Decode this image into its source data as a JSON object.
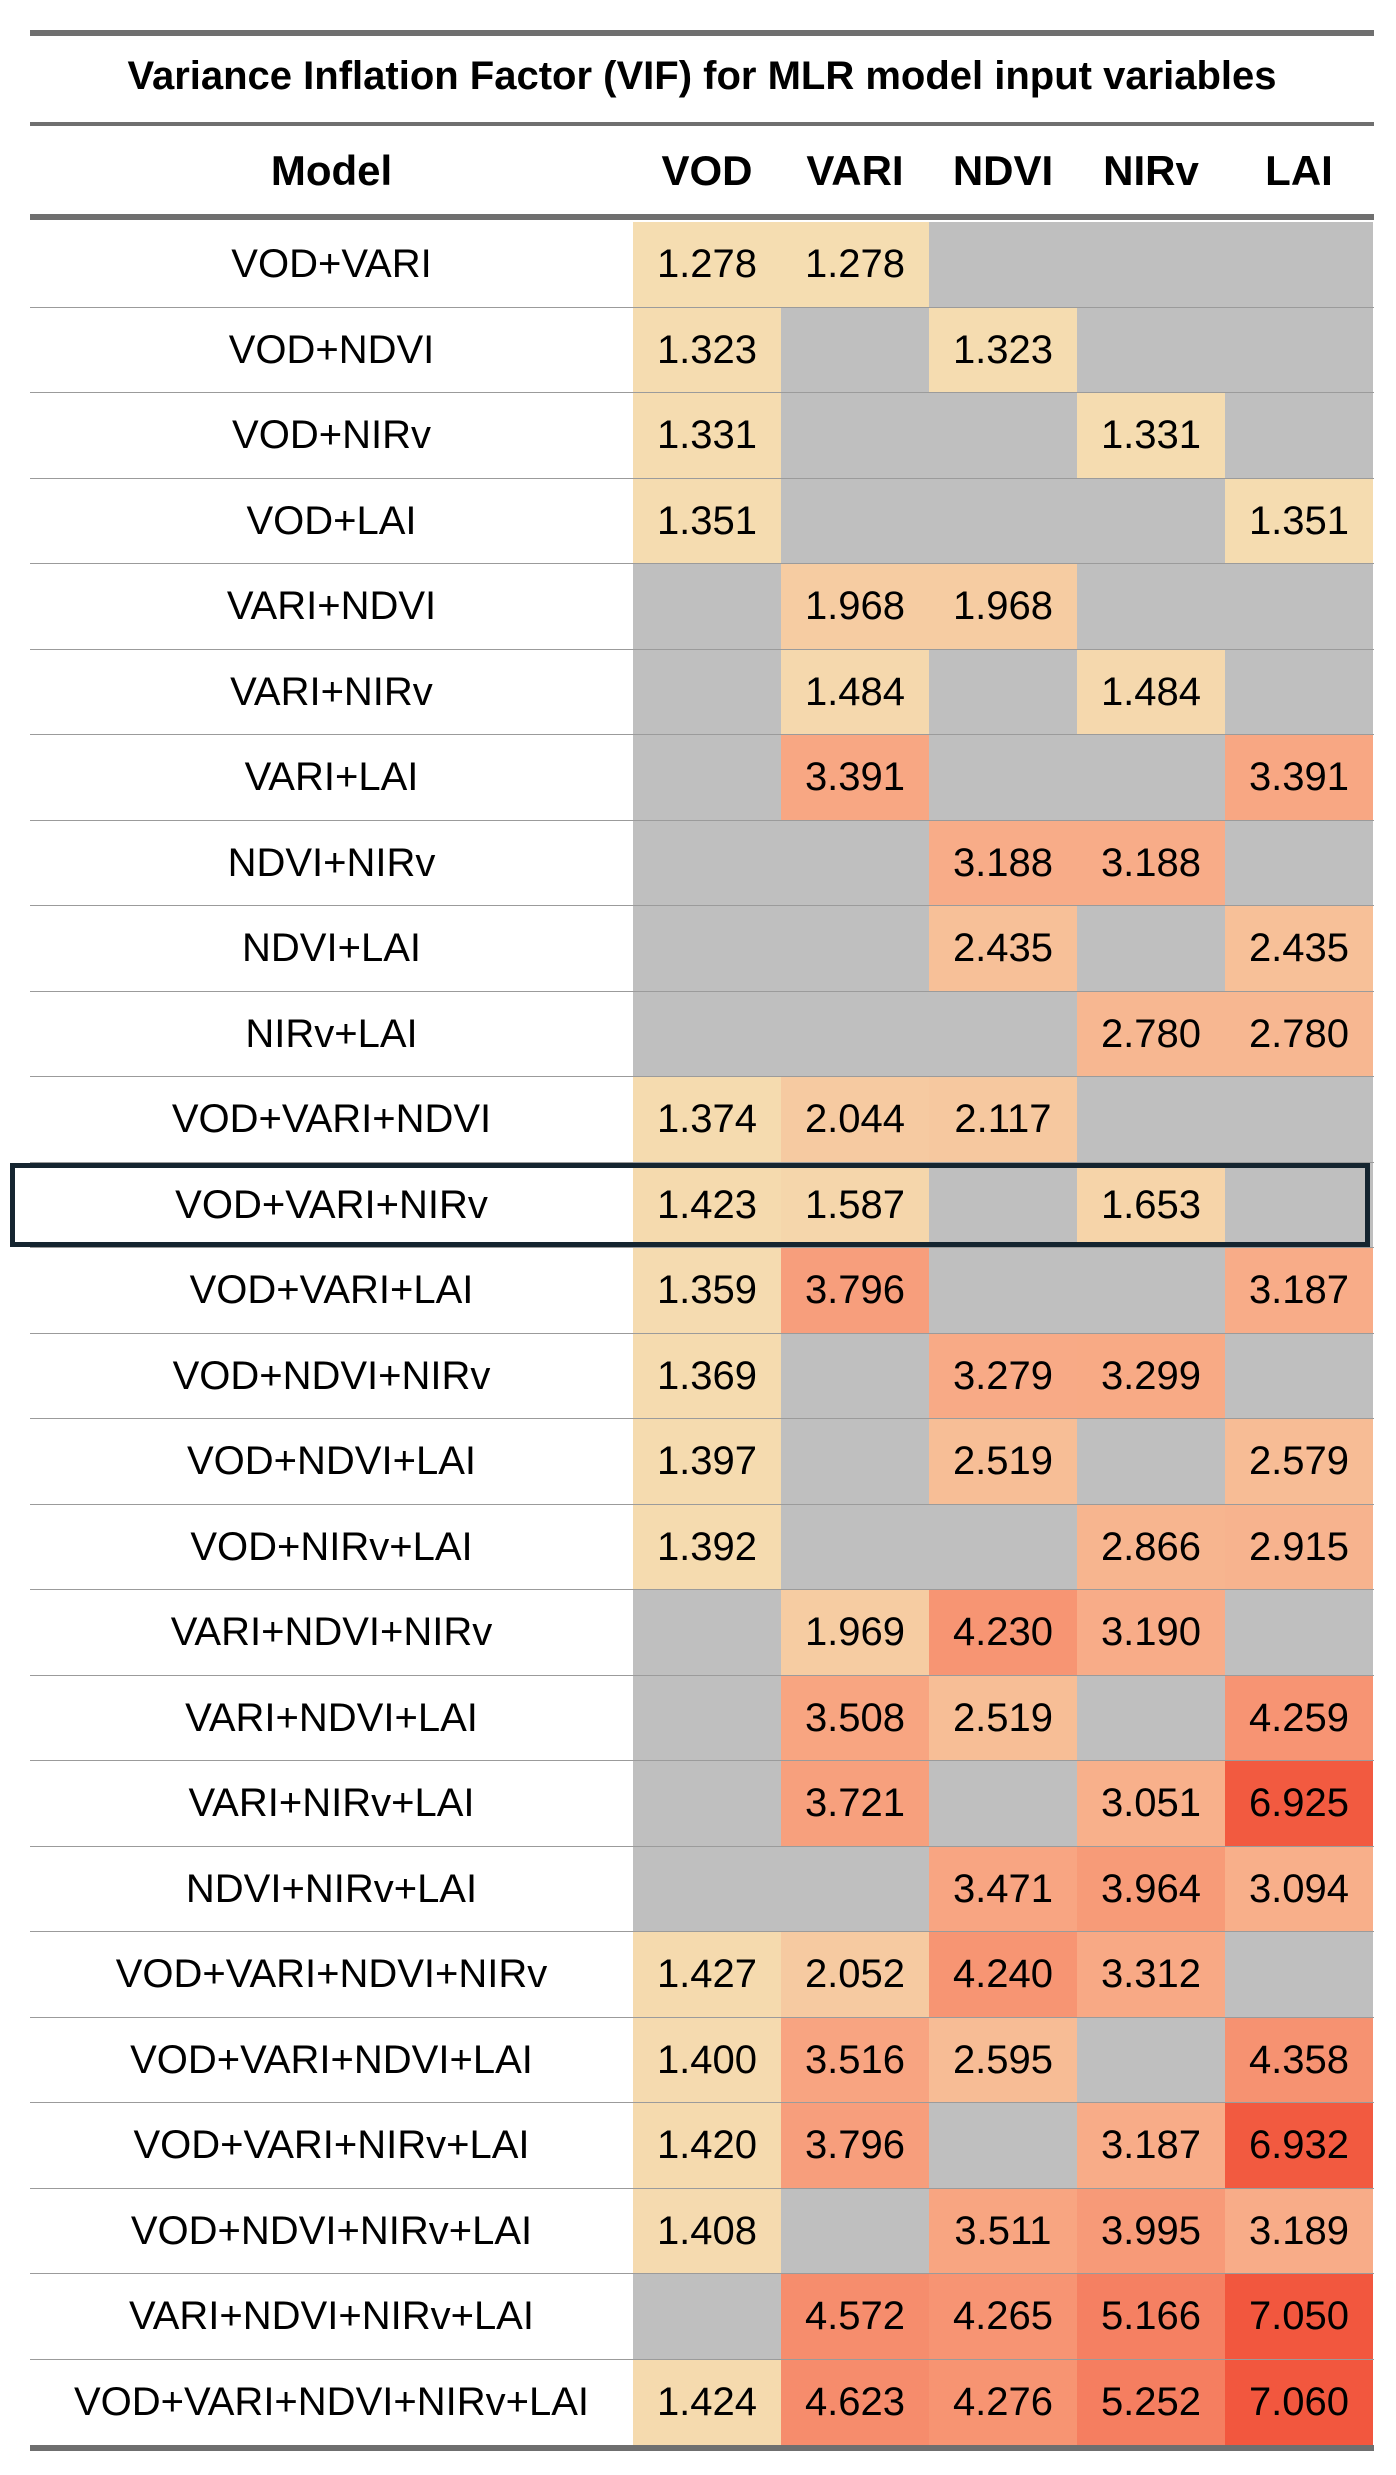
{
  "chart_data": {
    "type": "table",
    "title": "Variance Inflation Factor (VIF) for MLR model input variables",
    "columns": [
      "Model",
      "VOD",
      "VARI",
      "NDVI",
      "NIRv",
      "LAI"
    ],
    "highlighted_row": "VOD+VARI+NIRv",
    "colors": {
      "empty_cell": "#bfbfbf",
      "low": "#f5ddb1",
      "mid": "#f8a783",
      "high": "#f2573e",
      "border": "#6f6f6f",
      "highlight_border": "#152530"
    },
    "rows": [
      {
        "model": "VOD+VARI",
        "values": [
          "1.278",
          "1.278",
          "",
          "",
          ""
        ]
      },
      {
        "model": "VOD+NDVI",
        "values": [
          "1.323",
          "",
          "1.323",
          "",
          ""
        ]
      },
      {
        "model": "VOD+NIRv",
        "values": [
          "1.331",
          "",
          "",
          "1.331",
          ""
        ]
      },
      {
        "model": "VOD+LAI",
        "values": [
          "1.351",
          "",
          "",
          "",
          "1.351"
        ]
      },
      {
        "model": "VARI+NDVI",
        "values": [
          "",
          "1.968",
          "1.968",
          "",
          ""
        ]
      },
      {
        "model": "VARI+NIRv",
        "values": [
          "",
          "1.484",
          "",
          "1.484",
          ""
        ]
      },
      {
        "model": "VARI+LAI",
        "values": [
          "",
          "3.391",
          "",
          "",
          "3.391"
        ]
      },
      {
        "model": "NDVI+NIRv",
        "values": [
          "",
          "",
          "3.188",
          "3.188",
          ""
        ]
      },
      {
        "model": "NDVI+LAI",
        "values": [
          "",
          "",
          "2.435",
          "",
          "2.435"
        ]
      },
      {
        "model": "NIRv+LAI",
        "values": [
          "",
          "",
          "",
          "2.780",
          "2.780"
        ]
      },
      {
        "model": "VOD+VARI+NDVI",
        "values": [
          "1.374",
          "2.044",
          "2.117",
          "",
          ""
        ]
      },
      {
        "model": "VOD+VARI+NIRv",
        "values": [
          "1.423",
          "1.587",
          "",
          "1.653",
          ""
        ]
      },
      {
        "model": "VOD+VARI+LAI",
        "values": [
          "1.359",
          "3.796",
          "",
          "",
          "3.187"
        ]
      },
      {
        "model": "VOD+NDVI+NIRv",
        "values": [
          "1.369",
          "",
          "3.279",
          "3.299",
          ""
        ]
      },
      {
        "model": "VOD+NDVI+LAI",
        "values": [
          "1.397",
          "",
          "2.519",
          "",
          "2.579"
        ]
      },
      {
        "model": "VOD+NIRv+LAI",
        "values": [
          "1.392",
          "",
          "",
          "2.866",
          "2.915"
        ]
      },
      {
        "model": "VARI+NDVI+NIRv",
        "values": [
          "",
          "1.969",
          "4.230",
          "3.190",
          ""
        ]
      },
      {
        "model": "VARI+NDVI+LAI",
        "values": [
          "",
          "3.508",
          "2.519",
          "",
          "4.259"
        ]
      },
      {
        "model": "VARI+NIRv+LAI",
        "values": [
          "",
          "3.721",
          "",
          "3.051",
          "6.925"
        ]
      },
      {
        "model": "NDVI+NIRv+LAI",
        "values": [
          "",
          "",
          "3.471",
          "3.964",
          "3.094"
        ]
      },
      {
        "model": "VOD+VARI+NDVI+NIRv",
        "values": [
          "1.427",
          "2.052",
          "4.240",
          "3.312",
          ""
        ]
      },
      {
        "model": "VOD+VARI+NDVI+LAI",
        "values": [
          "1.400",
          "3.516",
          "2.595",
          "",
          "4.358"
        ]
      },
      {
        "model": "VOD+VARI+NIRv+LAI",
        "values": [
          "1.420",
          "3.796",
          "",
          "3.187",
          "6.932"
        ]
      },
      {
        "model": "VOD+NDVI+NIRv+LAI",
        "values": [
          "1.408",
          "",
          "3.511",
          "3.995",
          "3.189"
        ]
      },
      {
        "model": "VARI+NDVI+NIRv+LAI",
        "values": [
          "",
          "4.572",
          "4.265",
          "5.166",
          "7.050"
        ]
      },
      {
        "model": "VOD+VARI+NDVI+NIRv+LAI",
        "values": [
          "1.424",
          "4.623",
          "4.276",
          "5.252",
          "7.060"
        ]
      }
    ]
  }
}
